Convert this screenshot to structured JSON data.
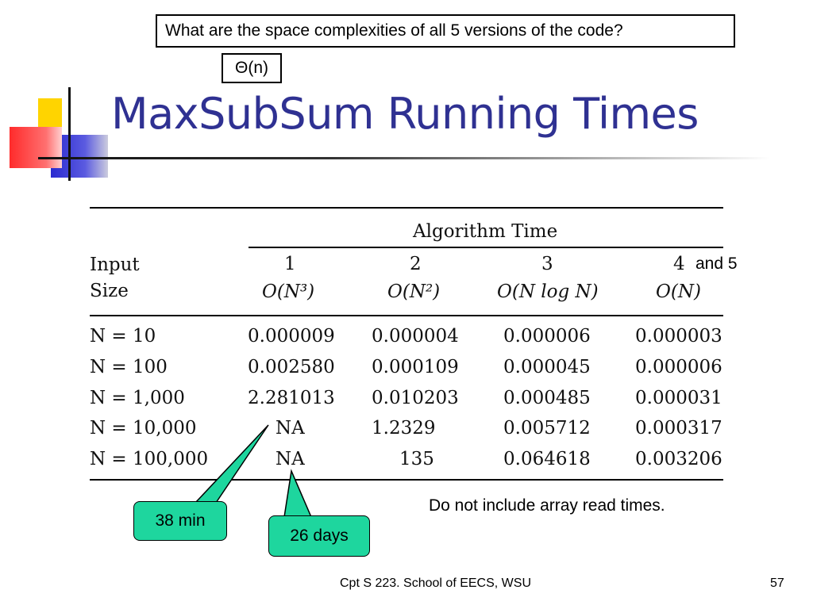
{
  "question": "What are the space complexities of all 5 versions of the code?",
  "answer": "Θ(n)",
  "title": "MaxSubSum Running Times",
  "table": {
    "group_header": "Algorithm Time",
    "input_label_1": "Input",
    "input_label_2": "Size",
    "columns": [
      {
        "number": "1",
        "complexity": "O(N³)"
      },
      {
        "number": "2",
        "complexity": "O(N²)"
      },
      {
        "number": "3",
        "complexity": "O(N log N)"
      },
      {
        "number": "4",
        "complexity": "O(N)"
      }
    ],
    "rows": [
      {
        "label": "N = 10",
        "values": [
          "0.000009",
          "0.000004",
          "0.000006",
          "0.000003"
        ]
      },
      {
        "label": "N = 100",
        "values": [
          "0.002580",
          "0.000109",
          "0.000045",
          "0.000006"
        ]
      },
      {
        "label": "N = 1,000",
        "values": [
          "2.281013",
          "0.010203",
          "0.000485",
          "0.000031"
        ]
      },
      {
        "label": "N = 10,000",
        "values": [
          "NA",
          "1.2329",
          "0.005712",
          "0.000317"
        ]
      },
      {
        "label": "N = 100,000",
        "values": [
          "NA",
          "135",
          "0.064618",
          "0.003206"
        ]
      }
    ]
  },
  "and5": "and 5",
  "callouts": {
    "first": "38 min",
    "second": "26 days"
  },
  "note": "Do not include array read times.",
  "footer": {
    "course": "Cpt S 223. School of EECS, WSU",
    "page": "57"
  },
  "colors": {
    "title": "#2f3192",
    "callout": "#1ed69e",
    "deco_yellow": "#ffd400",
    "deco_red": "#ff3b3b",
    "deco_blue": "#3333cc"
  }
}
